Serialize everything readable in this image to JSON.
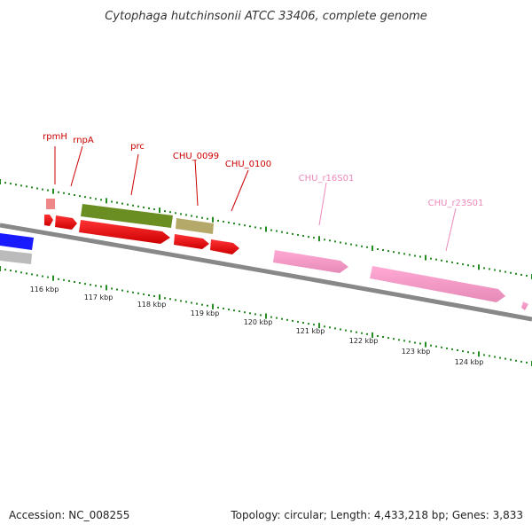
{
  "title": "Cytophaga hutchinsonii ATCC 33406, complete genome",
  "accession": "Accession: NC_008255",
  "summary": "Topology: circular; Length: 4,433,218 bp; Genes: 3,833",
  "ruler_labels": [
    "116 kbp",
    "117 kbp",
    "118 kbp",
    "119 kbp",
    "120 kbp",
    "121 kbp",
    "122 kbp",
    "123 kbp",
    "124 kbp"
  ],
  "gene_labels": [
    {
      "text": "rpmH",
      "color": "#cc0000"
    },
    {
      "text": "rnpA",
      "color": "#cc0000"
    },
    {
      "text": "prc",
      "color": "#cc0000"
    },
    {
      "text": "CHU_0099",
      "color": "#cc0000"
    },
    {
      "text": "CHU_0100",
      "color": "#cc0000"
    },
    {
      "text": "CHU_r16S01",
      "color": "#ee88bb"
    },
    {
      "text": "CHU_r23S01",
      "color": "#ee88bb"
    }
  ],
  "colors": {
    "cds": "#ee0000",
    "rrna": "#ff99cc",
    "trna": "#ee8888",
    "olive_feature": "#6b8e23",
    "khaki_feature": "#b5a96a",
    "blue_feature": "#1a1aff",
    "gray_feature": "#bbbbbb",
    "backbone": "#888888",
    "ticks": "#228b22"
  }
}
